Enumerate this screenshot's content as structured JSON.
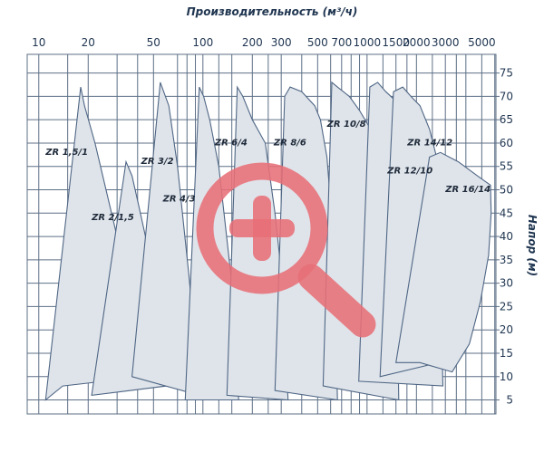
{
  "chart_data": {
    "type": "area",
    "title": "Производительность (м³/ч)",
    "ylabel": "Напор (м)",
    "x_scale": "log",
    "xlim": [
      8.5,
      6100
    ],
    "ylim": [
      2,
      79
    ],
    "x_ticks": [
      10,
      20,
      50,
      100,
      200,
      300,
      500,
      700,
      1000,
      1500,
      2000,
      3000,
      5000
    ],
    "x_tick_labels": [
      "10",
      "20",
      "50",
      "100",
      "200",
      "300",
      "500",
      "700",
      "1000",
      "1500",
      "2000",
      "3000",
      "5000"
    ],
    "x_grid": [
      10,
      15,
      20,
      30,
      40,
      50,
      70,
      80,
      90,
      100,
      125,
      150,
      200,
      250,
      300,
      400,
      500,
      600,
      700,
      800,
      900,
      1000,
      1250,
      1500,
      1750,
      2000,
      2500,
      3000,
      3500,
      4000,
      5000,
      6000
    ],
    "y_ticks": [
      5,
      10,
      15,
      20,
      25,
      30,
      35,
      40,
      45,
      50,
      55,
      60,
      65,
      70,
      75
    ],
    "grid": true,
    "series": [
      {
        "name": "ZR 1,5/1",
        "label_at": [
          11,
          57.5
        ],
        "polygon": [
          [
            11,
            5
          ],
          [
            18,
            72
          ],
          [
            19,
            68
          ],
          [
            22,
            60
          ],
          [
            30,
            40
          ],
          [
            40,
            20
          ],
          [
            44,
            10
          ],
          [
            14,
            8
          ]
        ]
      },
      {
        "name": "ZR 2/1,5",
        "label_at": [
          21,
          43.5
        ],
        "polygon": [
          [
            21,
            6
          ],
          [
            34,
            56
          ],
          [
            37,
            53
          ],
          [
            41,
            46
          ],
          [
            48,
            35
          ],
          [
            50,
            25
          ],
          [
            60,
            8
          ]
        ]
      },
      {
        "name": "ZR 3/2",
        "label_at": [
          42,
          55.5
        ],
        "polygon": [
          [
            37,
            10
          ],
          [
            55,
            73
          ],
          [
            62,
            68
          ],
          [
            70,
            55
          ],
          [
            82,
            32
          ],
          [
            90,
            17
          ],
          [
            95,
            6
          ]
        ]
      },
      {
        "name": "ZR 4/3",
        "label_at": [
          57,
          47.5
        ],
        "polygon": [
          [
            78,
            5
          ],
          [
            95,
            72
          ],
          [
            101,
            70
          ],
          [
            110,
            65
          ],
          [
            125,
            55
          ],
          [
            150,
            30
          ],
          [
            160,
            17
          ],
          [
            165,
            5
          ]
        ]
      },
      {
        "name": "ZR 6/4",
        "label_at": [
          118,
          59.5
        ],
        "polygon": [
          [
            140,
            6
          ],
          [
            162,
            72
          ],
          [
            175,
            70
          ],
          [
            200,
            65
          ],
          [
            240,
            60
          ],
          [
            275,
            45
          ],
          [
            305,
            30
          ],
          [
            330,
            5
          ]
        ]
      },
      {
        "name": "ZR 8/6",
        "label_at": [
          270,
          59.5
        ],
        "polygon": [
          [
            275,
            7
          ],
          [
            315,
            70
          ],
          [
            340,
            72
          ],
          [
            400,
            71
          ],
          [
            480,
            68
          ],
          [
            520,
            65
          ],
          [
            570,
            57
          ],
          [
            600,
            47
          ],
          [
            640,
            30
          ],
          [
            650,
            15
          ],
          [
            660,
            5
          ]
        ]
      },
      {
        "name": "ZR 10/8",
        "label_at": [
          570,
          63.5
        ],
        "polygon": [
          [
            540,
            8
          ],
          [
            610,
            73
          ],
          [
            660,
            72
          ],
          [
            780,
            70
          ],
          [
            900,
            67
          ],
          [
            1050,
            63
          ],
          [
            1230,
            58
          ],
          [
            1350,
            50
          ],
          [
            1450,
            40
          ],
          [
            1500,
            32
          ],
          [
            1535,
            22
          ],
          [
            1560,
            5
          ]
        ]
      },
      {
        "name": "ZR 12/10",
        "label_at": [
          1330,
          53.5
        ],
        "polygon": [
          [
            890,
            9
          ],
          [
            1040,
            72
          ],
          [
            1160,
            73
          ],
          [
            1300,
            71
          ],
          [
            1500,
            69
          ],
          [
            1750,
            64
          ],
          [
            2100,
            57
          ],
          [
            2300,
            48
          ],
          [
            2600,
            37
          ],
          [
            2750,
            30
          ],
          [
            2840,
            22
          ],
          [
            2900,
            8
          ]
        ]
      },
      {
        "name": "ZR 14/12",
        "label_at": [
          1760,
          59.5
        ],
        "polygon": [
          [
            1200,
            10
          ],
          [
            1450,
            71
          ],
          [
            1650,
            72
          ],
          [
            1850,
            70
          ],
          [
            2100,
            68
          ],
          [
            2400,
            63
          ],
          [
            2650,
            57
          ],
          [
            2900,
            50
          ],
          [
            3300,
            40
          ],
          [
            3450,
            32
          ],
          [
            3500,
            22
          ],
          [
            3600,
            14
          ]
        ]
      },
      {
        "name": "ZR 16/14",
        "label_at": [
          3000,
          49.5
        ],
        "polygon": [
          [
            1500,
            13
          ],
          [
            2400,
            57
          ],
          [
            2800,
            58
          ],
          [
            3600,
            56
          ],
          [
            4700,
            53
          ],
          [
            5650,
            51
          ],
          [
            5700,
            45
          ],
          [
            5500,
            36
          ],
          [
            4900,
            26
          ],
          [
            4200,
            17
          ],
          [
            3300,
            11
          ],
          [
            2100,
            13
          ]
        ]
      }
    ]
  },
  "overlay": {
    "icon": "zoom-in-icon",
    "color": "#e87078"
  }
}
